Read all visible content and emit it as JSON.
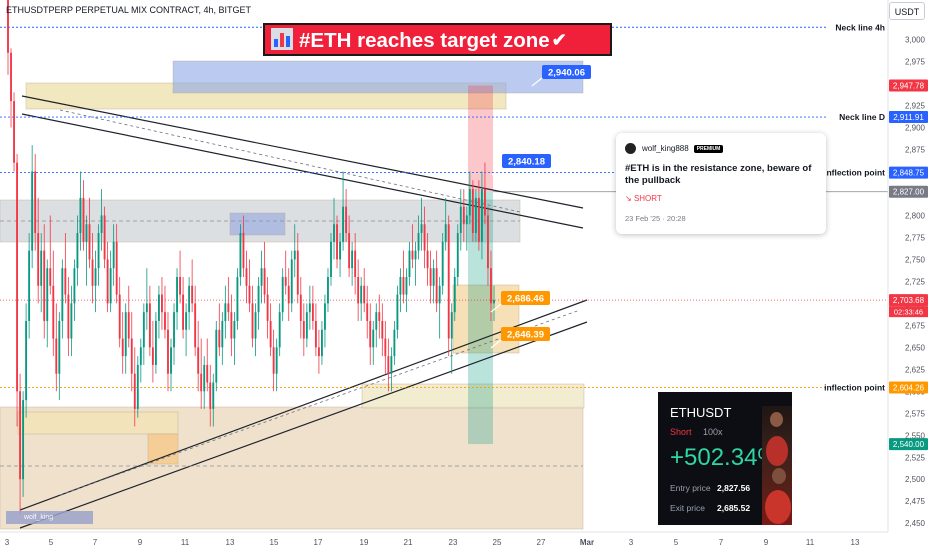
{
  "header": {
    "title": "ETHUSDTPERP PERPETUAL MIX CONTRACT, 4h, BITGET",
    "currency_button": "USDT"
  },
  "banner": {
    "text": "#ETH reaches target zone",
    "check": "✔",
    "icon": "bar-chart-icon"
  },
  "idea": {
    "author": "wolf_king888",
    "badge": "PREMIUM",
    "title": "#ETH is in the resistance zone, beware of the pullback",
    "direction": "SHORT",
    "direction_icon": "arrow-down-right-icon",
    "date": "23 Feb '25 · 20:28"
  },
  "pnl_card": {
    "symbol": "ETHUSDT",
    "direction": "Short",
    "leverage": "100x",
    "roi": "+502.34%",
    "entry_label": "Entry price",
    "entry_value": "2,827.56",
    "exit_label": "Exit price",
    "exit_value": "2,685.52"
  },
  "watermark": "wolf_king",
  "colors": {
    "up": "#089981",
    "down": "#f23645",
    "line_label": "#2962ff",
    "orange": "#ff9800"
  },
  "chart_data": {
    "type": "candlestick",
    "title": "ETHUSDTPERP PERPETUAL MIX CONTRACT, 4h, BITGET",
    "interval": "4h",
    "ylim": [
      2440,
      3045
    ],
    "yticks": [
      2450,
      2475,
      2500,
      2525,
      2550,
      2575,
      2600,
      2625,
      2650,
      2675,
      2700,
      2725,
      2750,
      2775,
      2800,
      2825,
      2850,
      2875,
      2900,
      2925,
      2950,
      2975,
      3000
    ],
    "xticks": [
      "3",
      "5",
      "7",
      "9",
      "11",
      "13",
      "15",
      "17",
      "19",
      "21",
      "23",
      "25",
      "27",
      "Mar",
      "3",
      "5",
      "7",
      "9",
      "11",
      "13"
    ],
    "price_labels": [
      {
        "text": "2,947.78",
        "value": 2947.78,
        "color": "#f23645"
      },
      {
        "text": "2,911.91",
        "value": 2911.91,
        "color": "#2962ff"
      },
      {
        "text": "2,848.75",
        "value": 2848.75,
        "color": "#2962ff"
      },
      {
        "text": "2,827.00",
        "value": 2827.0,
        "color": "#787b86"
      },
      {
        "text": "2,703.68",
        "value": 2703.68,
        "color": "#f23645",
        "countdown": "02:33:46"
      },
      {
        "text": "2,604.26",
        "value": 2604.26,
        "color": "#ff9800"
      },
      {
        "text": "2,540.00",
        "value": 2540.0,
        "color": "#089981"
      }
    ],
    "horizontal_lines": [
      {
        "label": "Neck line 4h",
        "value": 3014,
        "color": "#2962ff"
      },
      {
        "label": "Neck line D",
        "value": 2911.91,
        "color": "#2962ff"
      },
      {
        "label": "inflection point",
        "value": 2848.75,
        "color": "#2962ff"
      },
      {
        "label": "inflection point",
        "value": 2604.26,
        "color": "#ff9800"
      }
    ],
    "annotations": [
      {
        "text": "2,940.06",
        "value": 2940.06,
        "color": "#2962ff"
      },
      {
        "text": "2,840.18",
        "value": 2840.18,
        "color": "#2962ff"
      },
      {
        "text": "2,686.46",
        "value": 2686.46,
        "color": "#ff9800"
      },
      {
        "text": "2,646.39",
        "value": 2646.39,
        "color": "#ff9800"
      }
    ],
    "current_price": 2703.68,
    "trade": {
      "direction": "short",
      "entry": 2827.0,
      "stop": 2947.78,
      "target": 2540.0
    },
    "candles": [
      [
        3045,
        3045,
        2960,
        2985
      ],
      [
        2985,
        2990,
        2900,
        2930
      ],
      [
        2930,
        2940,
        2850,
        2860
      ],
      [
        2860,
        2870,
        2560,
        2600
      ],
      [
        2600,
        2620,
        2460,
        2500
      ],
      [
        2500,
        2600,
        2480,
        2590
      ],
      [
        2590,
        2700,
        2570,
        2680
      ],
      [
        2680,
        2780,
        2660,
        2760
      ],
      [
        2760,
        2880,
        2740,
        2850
      ],
      [
        2850,
        2870,
        2760,
        2780
      ],
      [
        2780,
        2820,
        2700,
        2720
      ],
      [
        2720,
        2780,
        2690,
        2760
      ],
      [
        2760,
        2790,
        2660,
        2680
      ],
      [
        2680,
        2750,
        2650,
        2740
      ],
      [
        2740,
        2800,
        2710,
        2720
      ],
      [
        2720,
        2760,
        2640,
        2660
      ],
      [
        2660,
        2700,
        2600,
        2620
      ],
      [
        2620,
        2690,
        2590,
        2680
      ],
      [
        2680,
        2750,
        2660,
        2740
      ],
      [
        2740,
        2780,
        2700,
        2710
      ],
      [
        2710,
        2730,
        2640,
        2660
      ],
      [
        2660,
        2720,
        2640,
        2700
      ],
      [
        2700,
        2750,
        2680,
        2740
      ],
      [
        2740,
        2800,
        2720,
        2780
      ],
      [
        2780,
        2850,
        2760,
        2820
      ],
      [
        2820,
        2840,
        2760,
        2770
      ],
      [
        2770,
        2800,
        2720,
        2790
      ],
      [
        2790,
        2820,
        2740,
        2750
      ],
      [
        2750,
        2780,
        2700,
        2720
      ],
      [
        2720,
        2760,
        2690,
        2740
      ],
      [
        2740,
        2790,
        2720,
        2780
      ],
      [
        2780,
        2830,
        2760,
        2800
      ],
      [
        2800,
        2810,
        2740,
        2750
      ],
      [
        2750,
        2770,
        2690,
        2700
      ],
      [
        2700,
        2760,
        2690,
        2740
      ],
      [
        2740,
        2790,
        2720,
        2770
      ],
      [
        2770,
        2790,
        2700,
        2710
      ],
      [
        2710,
        2730,
        2650,
        2660
      ],
      [
        2660,
        2690,
        2620,
        2640
      ],
      [
        2640,
        2700,
        2620,
        2690
      ],
      [
        2690,
        2720,
        2650,
        2660
      ],
      [
        2660,
        2690,
        2600,
        2620
      ],
      [
        2620,
        2650,
        2560,
        2580
      ],
      [
        2580,
        2640,
        2570,
        2630
      ],
      [
        2630,
        2660,
        2610,
        2650
      ],
      [
        2650,
        2700,
        2630,
        2690
      ],
      [
        2690,
        2740,
        2670,
        2700
      ],
      [
        2700,
        2720,
        2640,
        2650
      ],
      [
        2650,
        2680,
        2610,
        2630
      ],
      [
        2630,
        2690,
        2620,
        2680
      ],
      [
        2680,
        2720,
        2660,
        2710
      ],
      [
        2710,
        2730,
        2670,
        2690
      ],
      [
        2690,
        2720,
        2660,
        2670
      ],
      [
        2670,
        2690,
        2600,
        2620
      ],
      [
        2620,
        2660,
        2600,
        2650
      ],
      [
        2650,
        2700,
        2630,
        2690
      ],
      [
        2690,
        2740,
        2670,
        2730
      ],
      [
        2730,
        2760,
        2700,
        2710
      ],
      [
        2710,
        2730,
        2660,
        2670
      ],
      [
        2670,
        2700,
        2640,
        2690
      ],
      [
        2690,
        2730,
        2670,
        2720
      ],
      [
        2720,
        2750,
        2690,
        2700
      ],
      [
        2700,
        2720,
        2640,
        2650
      ],
      [
        2650,
        2680,
        2600,
        2620
      ],
      [
        2620,
        2660,
        2580,
        2600
      ],
      [
        2600,
        2640,
        2580,
        2630
      ],
      [
        2630,
        2660,
        2600,
        2610
      ],
      [
        2610,
        2630,
        2560,
        2580
      ],
      [
        2580,
        2620,
        2560,
        2610
      ],
      [
        2610,
        2680,
        2600,
        2670
      ],
      [
        2670,
        2700,
        2640,
        2650
      ],
      [
        2650,
        2690,
        2630,
        2680
      ],
      [
        2680,
        2720,
        2660,
        2700
      ],
      [
        2700,
        2730,
        2680,
        2690
      ],
      [
        2690,
        2710,
        2640,
        2660
      ],
      [
        2660,
        2690,
        2630,
        2680
      ],
      [
        2680,
        2740,
        2670,
        2730
      ],
      [
        2730,
        2790,
        2720,
        2780
      ],
      [
        2780,
        2800,
        2730,
        2740
      ],
      [
        2740,
        2760,
        2700,
        2720
      ],
      [
        2720,
        2750,
        2690,
        2700
      ],
      [
        2700,
        2720,
        2650,
        2660
      ],
      [
        2660,
        2700,
        2640,
        2690
      ],
      [
        2690,
        2730,
        2670,
        2720
      ],
      [
        2720,
        2760,
        2700,
        2740
      ],
      [
        2740,
        2770,
        2700,
        2710
      ],
      [
        2710,
        2730,
        2660,
        2680
      ],
      [
        2680,
        2700,
        2640,
        2650
      ],
      [
        2650,
        2670,
        2600,
        2620
      ],
      [
        2620,
        2660,
        2600,
        2650
      ],
      [
        2650,
        2700,
        2640,
        2690
      ],
      [
        2690,
        2740,
        2680,
        2730
      ],
      [
        2730,
        2760,
        2710,
        2720
      ],
      [
        2720,
        2740,
        2680,
        2700
      ],
      [
        2700,
        2760,
        2690,
        2750
      ],
      [
        2750,
        2790,
        2730,
        2760
      ],
      [
        2760,
        2780,
        2700,
        2710
      ],
      [
        2710,
        2730,
        2660,
        2680
      ],
      [
        2680,
        2700,
        2640,
        2660
      ],
      [
        2660,
        2700,
        2650,
        2690
      ],
      [
        2690,
        2720,
        2670,
        2700
      ],
      [
        2700,
        2720,
        2670,
        2680
      ],
      [
        2680,
        2700,
        2640,
        2650
      ],
      [
        2650,
        2670,
        2620,
        2640
      ],
      [
        2640,
        2680,
        2630,
        2670
      ],
      [
        2670,
        2710,
        2650,
        2700
      ],
      [
        2700,
        2740,
        2690,
        2730
      ],
      [
        2730,
        2780,
        2720,
        2770
      ],
      [
        2770,
        2820,
        2750,
        2790
      ],
      [
        2790,
        2800,
        2740,
        2750
      ],
      [
        2750,
        2780,
        2730,
        2770
      ],
      [
        2770,
        2850,
        2760,
        2810
      ],
      [
        2810,
        2830,
        2770,
        2780
      ],
      [
        2780,
        2800,
        2730,
        2740
      ],
      [
        2740,
        2770,
        2720,
        2760
      ],
      [
        2760,
        2780,
        2710,
        2730
      ],
      [
        2730,
        2750,
        2680,
        2700
      ],
      [
        2700,
        2730,
        2680,
        2720
      ],
      [
        2720,
        2740,
        2690,
        2700
      ],
      [
        2700,
        2720,
        2660,
        2680
      ],
      [
        2680,
        2700,
        2630,
        2650
      ],
      [
        2650,
        2680,
        2630,
        2670
      ],
      [
        2670,
        2700,
        2650,
        2690
      ],
      [
        2690,
        2710,
        2660,
        2680
      ],
      [
        2680,
        2700,
        2640,
        2660
      ],
      [
        2660,
        2680,
        2620,
        2640
      ],
      [
        2640,
        2660,
        2600,
        2620
      ],
      [
        2620,
        2650,
        2600,
        2640
      ],
      [
        2640,
        2680,
        2630,
        2670
      ],
      [
        2670,
        2720,
        2660,
        2710
      ],
      [
        2710,
        2740,
        2690,
        2730
      ],
      [
        2730,
        2760,
        2700,
        2710
      ],
      [
        2710,
        2740,
        2690,
        2730
      ],
      [
        2730,
        2770,
        2720,
        2760
      ],
      [
        2760,
        2790,
        2740,
        2750
      ],
      [
        2750,
        2770,
        2720,
        2760
      ],
      [
        2760,
        2800,
        2750,
        2780
      ],
      [
        2780,
        2820,
        2760,
        2790
      ],
      [
        2790,
        2810,
        2740,
        2760
      ],
      [
        2760,
        2780,
        2720,
        2740
      ],
      [
        2740,
        2760,
        2700,
        2720
      ],
      [
        2720,
        2750,
        2700,
        2740
      ],
      [
        2740,
        2760,
        2690,
        2700
      ],
      [
        2700,
        2730,
        2660,
        2720
      ],
      [
        2720,
        2780,
        2710,
        2770
      ],
      [
        2770,
        2820,
        2760,
        2790
      ],
      [
        2790,
        2800,
        2640,
        2660
      ],
      [
        2660,
        2700,
        2620,
        2690
      ],
      [
        2690,
        2740,
        2680,
        2730
      ],
      [
        2730,
        2790,
        2720,
        2780
      ],
      [
        2780,
        2830,
        2760,
        2810
      ],
      [
        2810,
        2830,
        2770,
        2790
      ],
      [
        2790,
        2810,
        2760,
        2800
      ],
      [
        2800,
        2850,
        2790,
        2830
      ],
      [
        2830,
        2840,
        2770,
        2780
      ],
      [
        2780,
        2830,
        2770,
        2820
      ],
      [
        2820,
        2840,
        2760,
        2770
      ],
      [
        2770,
        2850,
        2750,
        2830
      ],
      [
        2830,
        2860,
        2790,
        2800
      ],
      [
        2800,
        2810,
        2720,
        2740
      ],
      [
        2740,
        2760,
        2680,
        2700
      ],
      [
        2700,
        2720,
        2680,
        2704
      ]
    ]
  }
}
